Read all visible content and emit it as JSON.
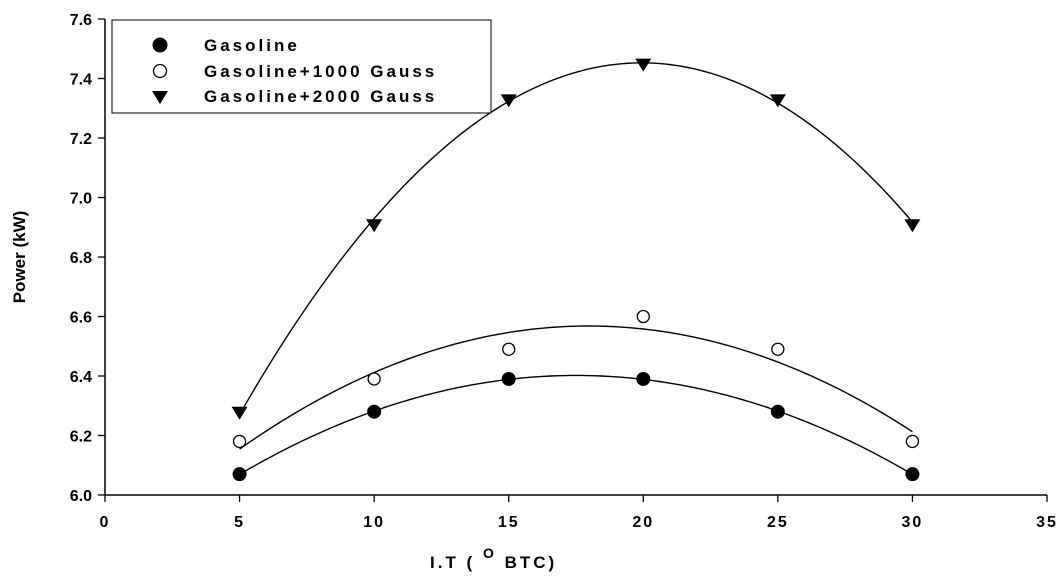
{
  "chart_data": {
    "type": "scatter",
    "title": "",
    "xlabel_prefix": "I.T ( ",
    "xlabel_sup": "O",
    "xlabel_suffix": " BTC)",
    "ylabel": "Power (kW)",
    "xlim": [
      0,
      35
    ],
    "ylim": [
      6.0,
      7.6
    ],
    "xticks": [
      0,
      5,
      10,
      15,
      20,
      25,
      30,
      35
    ],
    "yticks": [
      "6.0",
      "6.2",
      "6.4",
      "6.6",
      "6.8",
      "7.0",
      "7.2",
      "7.4",
      "7.6"
    ],
    "grid": false,
    "legend_position": "top-left",
    "fit": "second-order polynomial curve through each series",
    "series": [
      {
        "name": "Gasoline",
        "marker": "filled-circle",
        "color": "#000000",
        "x": [
          5,
          10,
          15,
          20,
          25,
          30
        ],
        "y": [
          6.07,
          6.28,
          6.39,
          6.39,
          6.28,
          6.07
        ]
      },
      {
        "name": "Gasoline+1000 Gauss",
        "marker": "open-circle",
        "color": "#000000",
        "x": [
          5,
          10,
          15,
          20,
          25,
          30
        ],
        "y": [
          6.18,
          6.39,
          6.49,
          6.6,
          6.49,
          6.18
        ]
      },
      {
        "name": "Gasoline+2000 Gauss",
        "marker": "filled-triangle-down",
        "color": "#000000",
        "x": [
          5,
          10,
          15,
          20,
          25,
          30
        ],
        "y": [
          6.28,
          6.91,
          7.33,
          7.45,
          7.33,
          6.91
        ]
      }
    ]
  }
}
